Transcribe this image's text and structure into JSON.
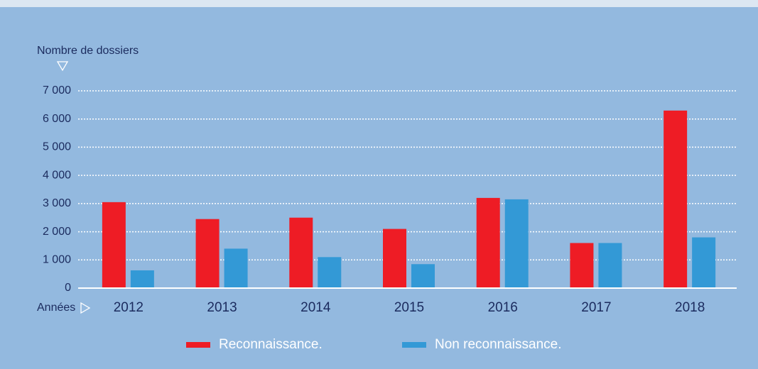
{
  "chart_data": {
    "type": "bar",
    "y_label": "Nombre de dossiers",
    "x_label": "Années",
    "categories": [
      "2012",
      "2013",
      "2014",
      "2015",
      "2016",
      "2017",
      "2018"
    ],
    "series": [
      {
        "name": "Reconnaissance.",
        "color": "#ee1c25",
        "values": [
          3050,
          2450,
          2500,
          2100,
          3200,
          1600,
          6300
        ]
      },
      {
        "name": "Non reconnaissance.",
        "color": "#3399d6",
        "values": [
          630,
          1400,
          1100,
          850,
          3150,
          1600,
          1800
        ]
      }
    ],
    "ylim": [
      0,
      7000
    ],
    "yticks": [
      0,
      {
        "value": 1000,
        "label": "1 000"
      },
      {
        "value": 2000,
        "label": "2 000"
      },
      {
        "value": 3000,
        "label": "3 000"
      },
      {
        "value": 4000,
        "label": "4 000"
      },
      {
        "value": 5000,
        "label": "5 000"
      },
      {
        "value": 6000,
        "label": "6 000"
      },
      {
        "value": 7000,
        "label": "7 000"
      }
    ],
    "grid": true
  }
}
